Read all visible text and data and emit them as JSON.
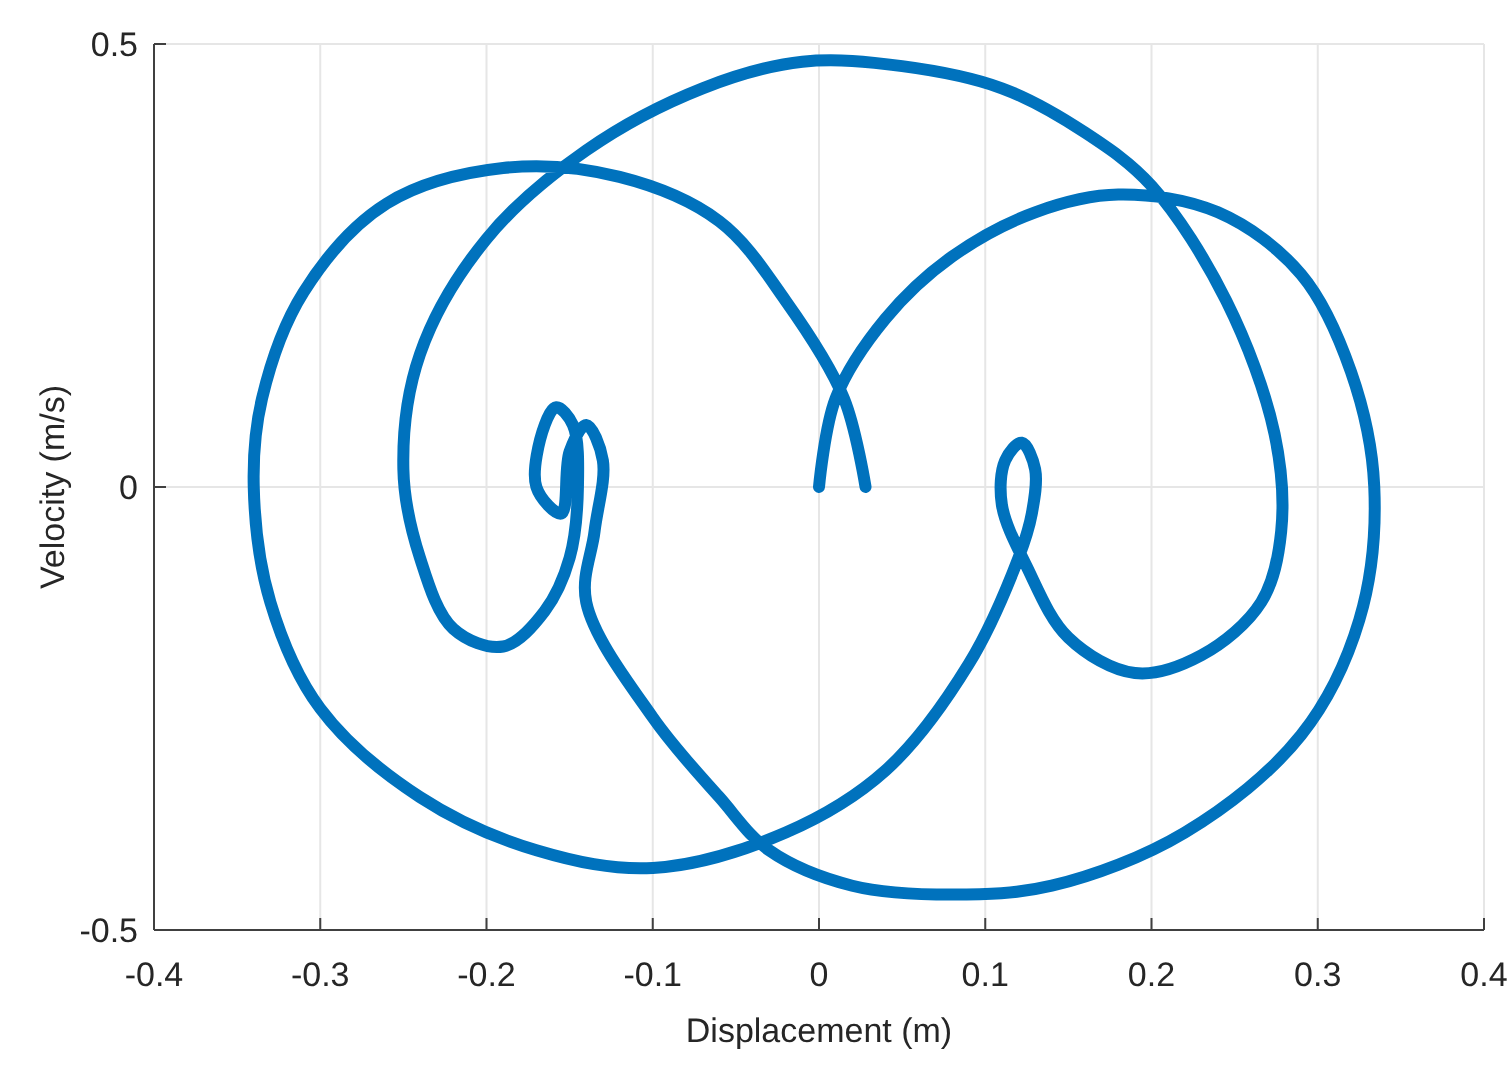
{
  "chart_data": {
    "type": "line",
    "xlabel": "Displacement (m)",
    "ylabel": "Velocity (m/s)",
    "xlim": [
      -0.4,
      0.4
    ],
    "xticks": [
      -0.4,
      -0.3,
      -0.2,
      -0.1,
      0,
      0.1,
      0.2,
      0.3,
      0.4
    ],
    "ylim": [
      -0.5,
      0.5
    ],
    "yticks": [
      -0.5,
      0,
      0.5
    ],
    "grid": true,
    "marker": "none",
    "line_style": "solid",
    "series": [
      {
        "color": "#0072bd",
        "x": [
          0,
          0.01,
          0.04,
          0.08,
          0.13,
          0.18,
          0.24,
          0.29,
          0.32,
          0.334,
          0.325,
          0.29,
          0.22,
          0.14,
          0.08,
          0.02,
          -0.03,
          -0.06,
          -0.1,
          -0.14,
          -0.135,
          -0.13,
          -0.14,
          -0.15,
          -0.155,
          -0.17,
          -0.165,
          -0.158,
          -0.148,
          -0.145,
          -0.15,
          -0.165,
          -0.19,
          -0.22,
          -0.24,
          -0.25,
          -0.24,
          -0.2,
          -0.14,
          -0.07,
          -0.01,
          0.05,
          0.11,
          0.16,
          0.2,
          0.245,
          0.274,
          0.278,
          0.266,
          0.23,
          0.19,
          0.15,
          0.125,
          0.11,
          0.112,
          0.122,
          0.13,
          0.128,
          0.12,
          0.09,
          0.04,
          -0.02,
          -0.1,
          -0.17,
          -0.24,
          -0.3,
          -0.33,
          -0.34,
          -0.335,
          -0.31,
          -0.26,
          -0.19,
          -0.12,
          -0.06,
          -0.02,
          0.015,
          0.028
        ],
        "values": [
          0,
          0.1,
          0.19,
          0.26,
          0.31,
          0.33,
          0.31,
          0.24,
          0.13,
          0,
          -0.15,
          -0.28,
          -0.39,
          -0.45,
          -0.46,
          -0.45,
          -0.41,
          -0.35,
          -0.26,
          -0.13,
          -0.05,
          0.03,
          0.07,
          0.04,
          -0.03,
          0,
          0.07,
          0.09,
          0.07,
          0,
          -0.08,
          -0.14,
          -0.18,
          -0.16,
          -0.08,
          0.02,
          0.15,
          0.28,
          0.38,
          0.45,
          0.48,
          0.475,
          0.45,
          0.4,
          0.34,
          0.21,
          0.06,
          -0.05,
          -0.13,
          -0.19,
          -0.21,
          -0.17,
          -0.09,
          -0.02,
          0.03,
          0.05,
          0.02,
          -0.03,
          -0.08,
          -0.2,
          -0.32,
          -0.39,
          -0.43,
          -0.41,
          -0.35,
          -0.25,
          -0.13,
          0,
          0.1,
          0.22,
          0.32,
          0.36,
          0.35,
          0.3,
          0.21,
          0.1,
          0
        ]
      }
    ]
  }
}
